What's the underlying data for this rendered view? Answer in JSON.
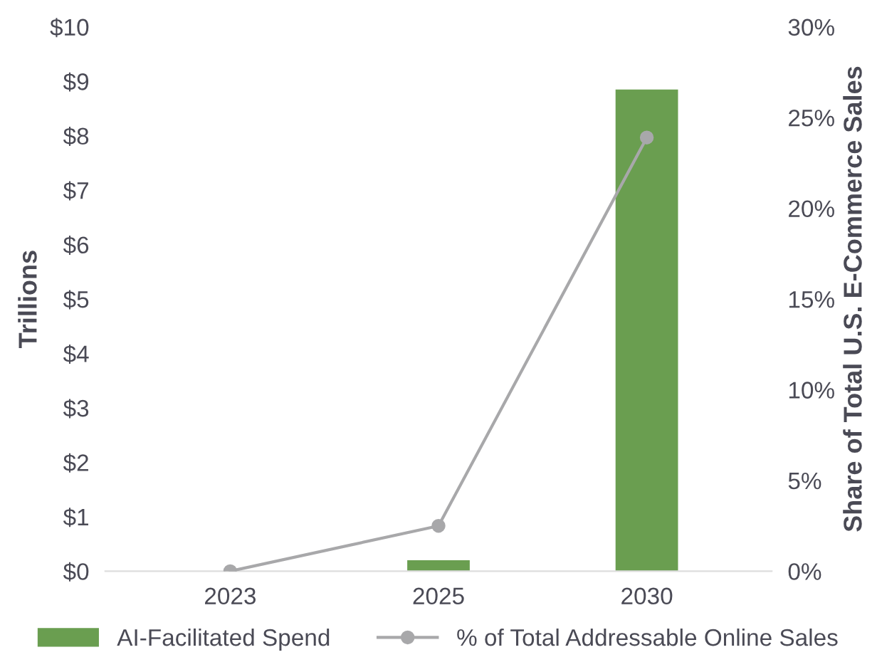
{
  "chart_data": {
    "type": "bar",
    "categories": [
      "2023",
      "2025",
      "2030"
    ],
    "ylabel": "Trillions",
    "y2label": "Share of Total U.S. E-Commerce Sales",
    "series": [
      {
        "name": "AI-Facilitated Spend",
        "color": "#6a9e50",
        "values": [
          0,
          0.2,
          8.85
        ]
      },
      {
        "name": "% of Total Addressable Online Sales",
        "type": "line",
        "axis": "y2",
        "color": "#a8a8aa",
        "marker": "circle",
        "values": [
          0,
          2.5,
          23.9
        ]
      }
    ],
    "ylim": [
      0,
      10
    ],
    "yticks": [
      {
        "value": 0,
        "label": "$0"
      },
      {
        "value": 1,
        "label": "$1"
      },
      {
        "value": 2,
        "label": "$2"
      },
      {
        "value": 3,
        "label": "$3"
      },
      {
        "value": 4,
        "label": "$4"
      },
      {
        "value": 5,
        "label": "$5"
      },
      {
        "value": 6,
        "label": "$6"
      },
      {
        "value": 7,
        "label": "$7"
      },
      {
        "value": 8,
        "label": "$8"
      },
      {
        "value": 9,
        "label": "$9"
      },
      {
        "value": 10,
        "label": "$10"
      }
    ],
    "y2lim": [
      0,
      30
    ],
    "y2ticks": [
      {
        "value": 0,
        "label": "0%"
      },
      {
        "value": 5,
        "label": "5%"
      },
      {
        "value": 10,
        "label": "10%"
      },
      {
        "value": 15,
        "label": "15%"
      },
      {
        "value": 20,
        "label": "20%"
      },
      {
        "value": 25,
        "label": "25%"
      },
      {
        "value": 30,
        "label": "30%"
      }
    ],
    "legend": "bottom",
    "grid": false
  }
}
